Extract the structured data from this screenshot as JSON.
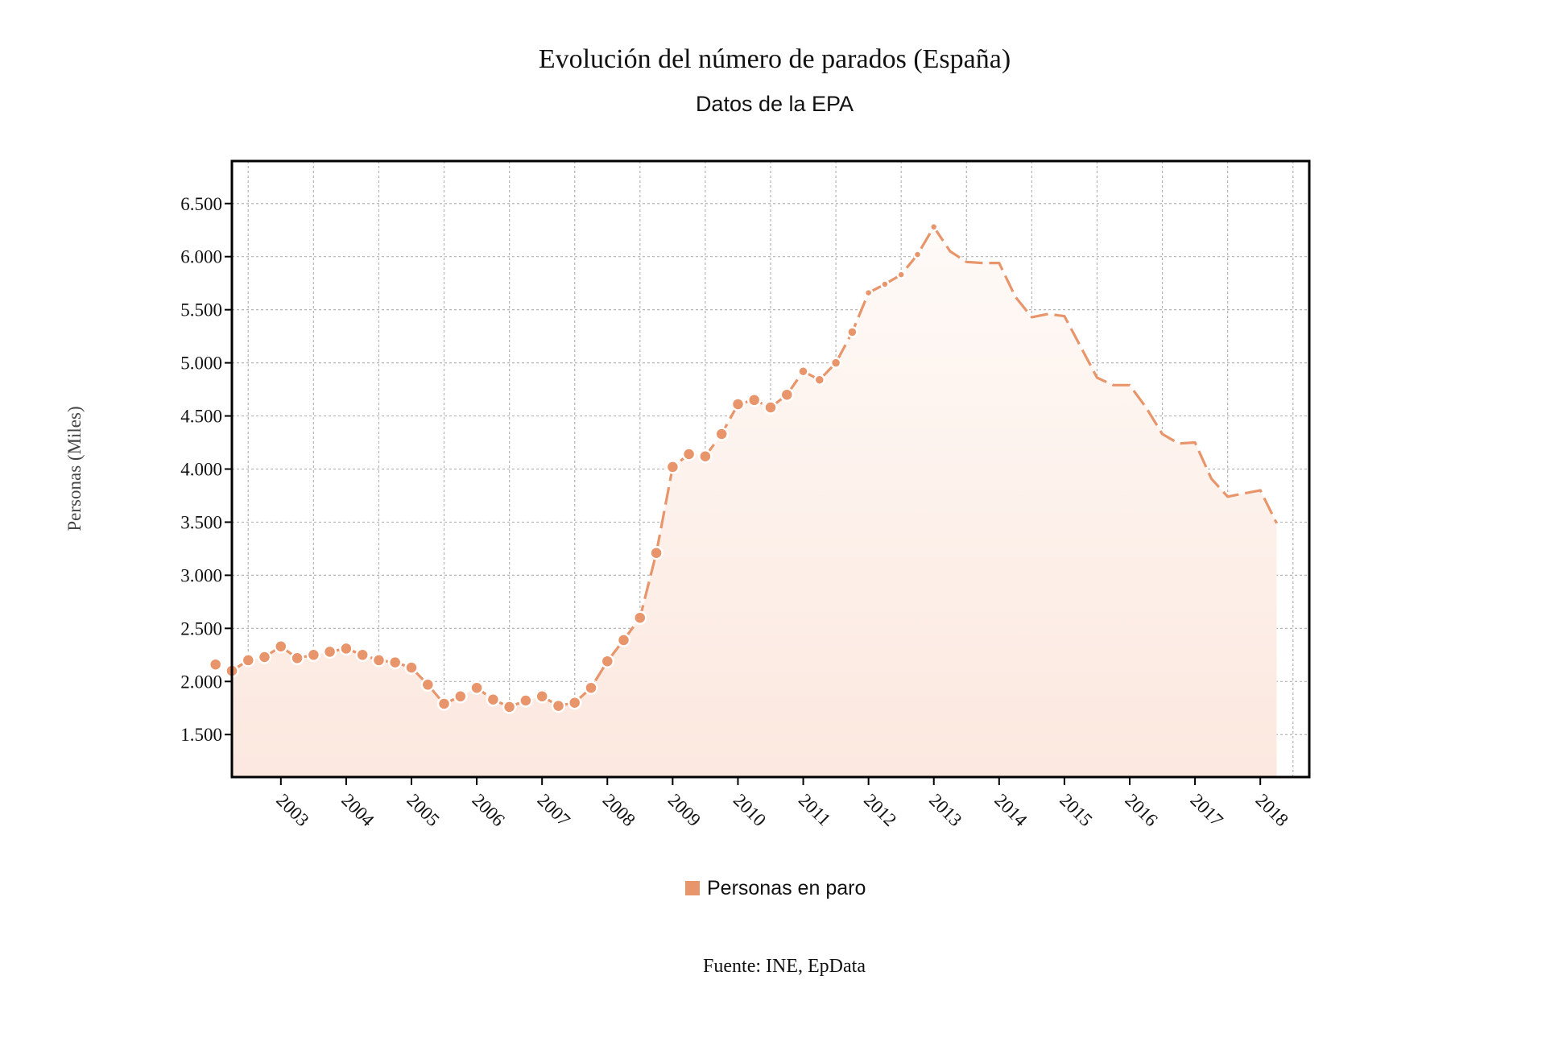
{
  "chart_data": {
    "type": "line",
    "title": "Evolución del número de parados (España)",
    "subtitle": "Datos de la EPA",
    "ylabel": "Personas (Miles)",
    "xlabel": "",
    "source": "Fuente: INE, EpData",
    "ylim": [
      1100,
      6900
    ],
    "yticks": [
      1500,
      2000,
      2500,
      3000,
      3500,
      4000,
      4500,
      5000,
      5500,
      6000,
      6500
    ],
    "ytick_labels": [
      "1.500",
      "2.000",
      "2.500",
      "3.000",
      "3.500",
      "4.000",
      "4.500",
      "5.000",
      "5.500",
      "6.000",
      "6.500"
    ],
    "xlim": [
      2002.25,
      2018.75
    ],
    "xticks": [
      2003,
      2004,
      2005,
      2006,
      2007,
      2008,
      2009,
      2010,
      2011,
      2012,
      2013,
      2014,
      2015,
      2016,
      2017,
      2018
    ],
    "xtick_labels": [
      "2003",
      "2004",
      "2005",
      "2006",
      "2007",
      "2008",
      "2009",
      "2010",
      "2011",
      "2012",
      "2013",
      "2014",
      "2015",
      "2016",
      "2017",
      "2018"
    ],
    "grid": true,
    "legend_position": "bottom",
    "colors": {
      "series": "#e8956b",
      "fill_top": "#fefaf7",
      "fill_bottom": "#fce8df",
      "grid": "#b5b5b5",
      "frame": "#000000"
    },
    "series": [
      {
        "name": "Personas en paro",
        "x": [
          "2002T1",
          "2002T2",
          "2002T3",
          "2002T4",
          "2003T1",
          "2003T2",
          "2003T3",
          "2003T4",
          "2004T1",
          "2004T2",
          "2004T3",
          "2004T4",
          "2005T1",
          "2005T2",
          "2005T3",
          "2005T4",
          "2006T1",
          "2006T2",
          "2006T3",
          "2006T4",
          "2007T1",
          "2007T2",
          "2007T3",
          "2007T4",
          "2008T1",
          "2008T2",
          "2008T3",
          "2008T4",
          "2009T1",
          "2009T2",
          "2009T3",
          "2009T4",
          "2010T1",
          "2010T2",
          "2010T3",
          "2010T4",
          "2011T1",
          "2011T2",
          "2011T3",
          "2011T4",
          "2012T1",
          "2012T2",
          "2012T3",
          "2012T4",
          "2013T1",
          "2013T2",
          "2013T3",
          "2013T4",
          "2014T1",
          "2014T2",
          "2014T3",
          "2014T4",
          "2015T1",
          "2015T2",
          "2015T3",
          "2015T4",
          "2016T1",
          "2016T2",
          "2016T3",
          "2016T4",
          "2017T1",
          "2017T2",
          "2017T3",
          "2017T4",
          "2018T1",
          "2018T2"
        ],
        "values": [
          2160,
          2100,
          2200,
          2230,
          2330,
          2220,
          2250,
          2280,
          2310,
          2250,
          2200,
          2180,
          2130,
          1970,
          1790,
          1860,
          1940,
          1830,
          1760,
          1820,
          1860,
          1770,
          1800,
          1940,
          2190,
          2390,
          2600,
          3210,
          4020,
          4140,
          4120,
          4330,
          4610,
          4650,
          4580,
          4700,
          4920,
          4840,
          5000,
          5290,
          5660,
          5740,
          5830,
          6020,
          6280,
          6050,
          5950,
          5940,
          5940,
          5620,
          5430,
          5460,
          5440,
          5150,
          4860,
          4790,
          4790,
          4580,
          4330,
          4240,
          4250,
          3910,
          3740,
          3770,
          3800,
          3490
        ]
      }
    ]
  }
}
